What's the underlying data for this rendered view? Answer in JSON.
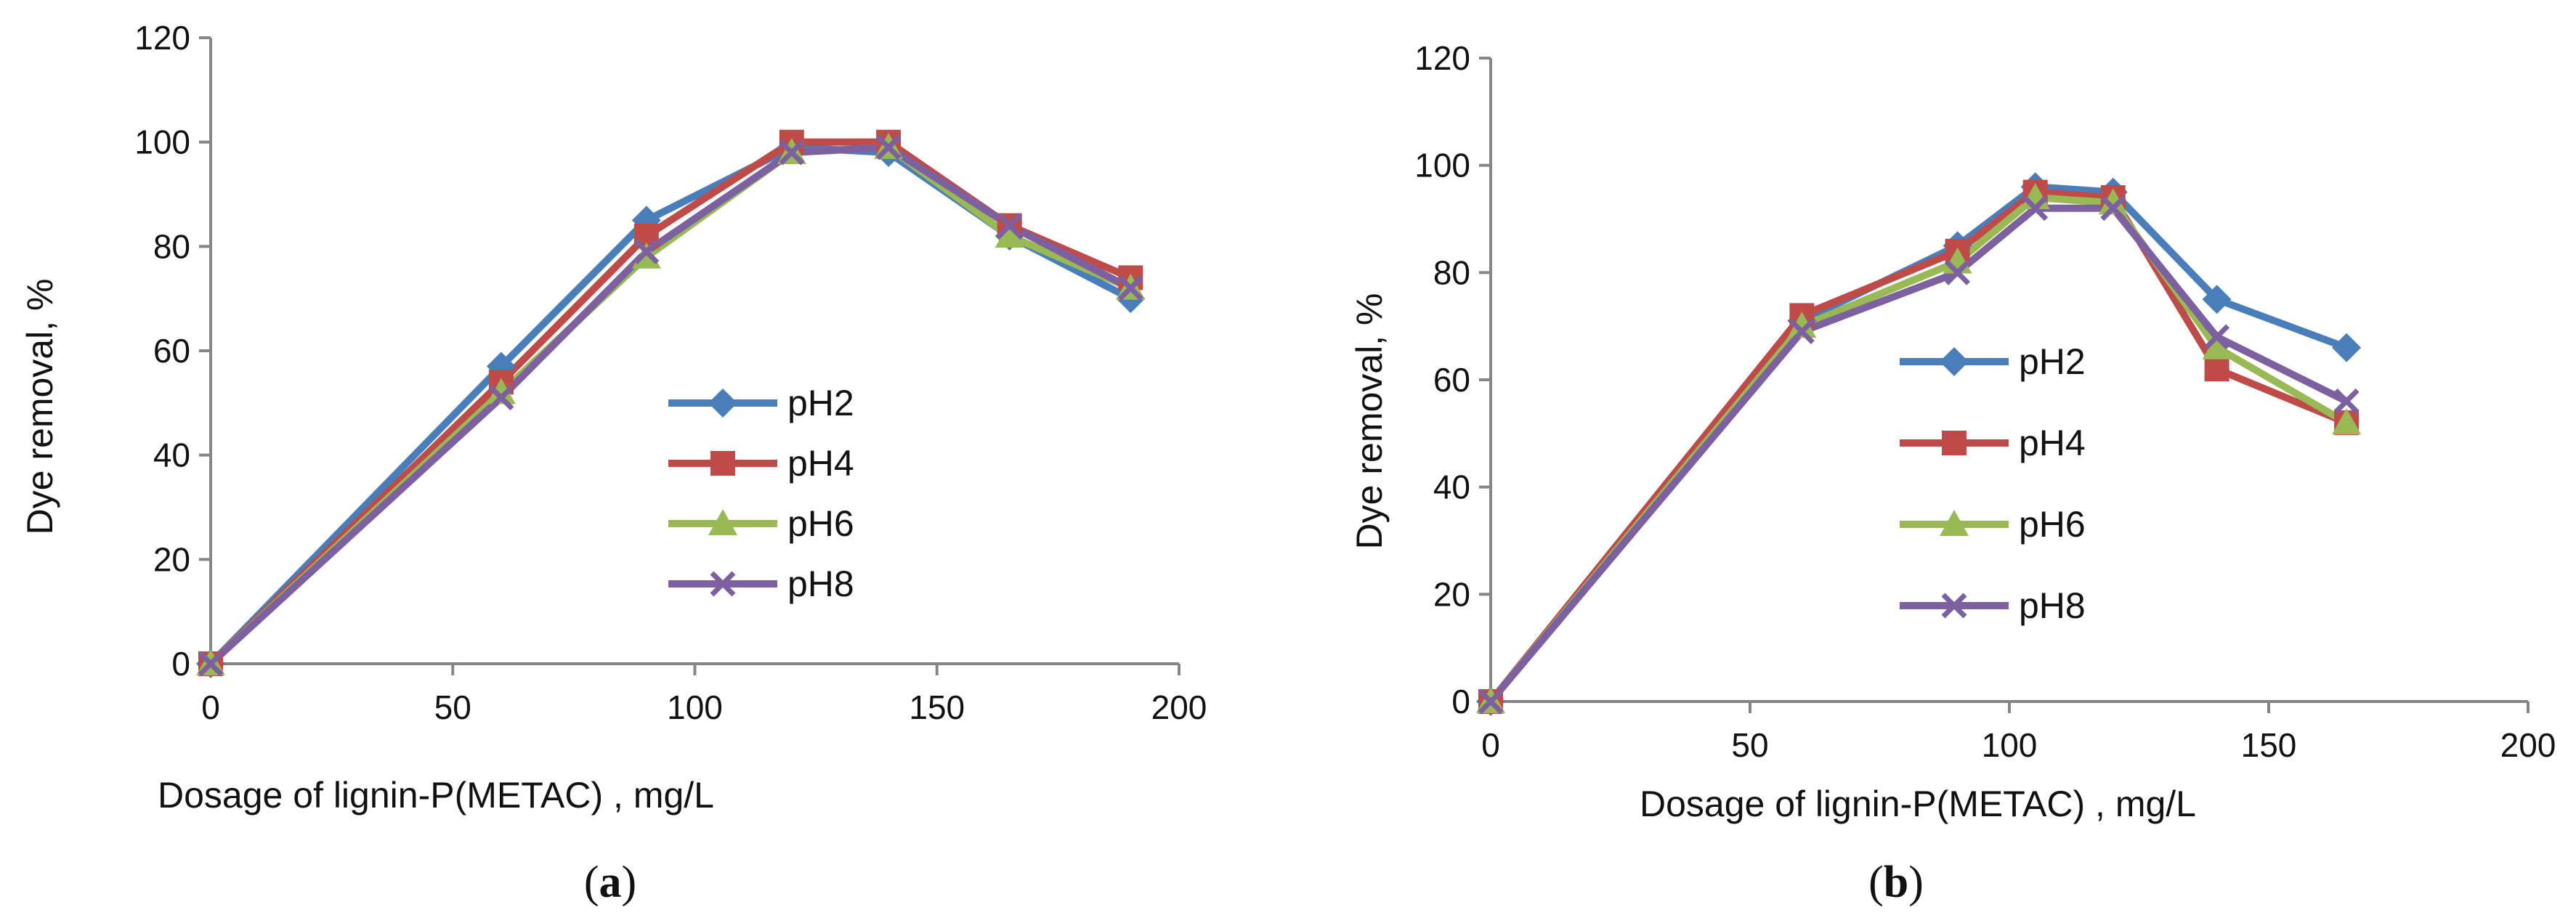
{
  "chart_data": [
    {
      "type": "line",
      "caption_letter": "a",
      "xlabel": "Dosage of lignin-P(METAC) , mg/L",
      "ylabel": "Dye removal, %",
      "xlim": [
        0,
        200
      ],
      "ylim": [
        0,
        120
      ],
      "x_ticks": [
        0,
        50,
        100,
        150,
        200
      ],
      "y_ticks": [
        0,
        20,
        40,
        60,
        80,
        100,
        120
      ],
      "grid": false,
      "legend_position": "center",
      "series": [
        {
          "name": "pH2",
          "color": "#4a7ebb",
          "marker": "diamond",
          "x": [
            0,
            60,
            90,
            120,
            140,
            165,
            190
          ],
          "values": [
            0,
            57,
            85,
            99,
            98,
            82,
            70
          ]
        },
        {
          "name": "pH4",
          "color": "#be4b48",
          "marker": "square",
          "x": [
            0,
            60,
            90,
            120,
            140,
            165,
            190
          ],
          "values": [
            0,
            54,
            82,
            100,
            100,
            84,
            74
          ]
        },
        {
          "name": "pH6",
          "color": "#98b954",
          "marker": "triangle",
          "x": [
            0,
            60,
            90,
            120,
            140,
            165,
            190
          ],
          "values": [
            0,
            52,
            78,
            98,
            99,
            82,
            72
          ]
        },
        {
          "name": "pH8",
          "color": "#7d60a0",
          "marker": "x",
          "x": [
            0,
            60,
            90,
            120,
            140,
            165,
            190
          ],
          "values": [
            0,
            51,
            79,
            98,
            99,
            84,
            72
          ]
        }
      ]
    },
    {
      "type": "line",
      "caption_letter": "b",
      "xlabel": "Dosage of lignin-P(METAC) , mg/L",
      "ylabel": "Dye removal, %",
      "xlim": [
        0,
        200
      ],
      "ylim": [
        0,
        120
      ],
      "x_ticks": [
        0,
        50,
        100,
        150,
        200
      ],
      "y_ticks": [
        0,
        20,
        40,
        60,
        80,
        100,
        120
      ],
      "grid": false,
      "legend_position": "center-right",
      "series": [
        {
          "name": "pH2",
          "color": "#4a7ebb",
          "marker": "diamond",
          "x": [
            0,
            60,
            90,
            105,
            120,
            140,
            165
          ],
          "values": [
            0,
            71,
            85,
            96,
            95,
            75,
            66
          ]
        },
        {
          "name": "pH4",
          "color": "#be4b48",
          "marker": "square",
          "x": [
            0,
            60,
            90,
            105,
            120,
            140,
            165
          ],
          "values": [
            0,
            72,
            84,
            95,
            94,
            62,
            52
          ]
        },
        {
          "name": "pH6",
          "color": "#98b954",
          "marker": "triangle",
          "x": [
            0,
            60,
            90,
            105,
            120,
            140,
            165
          ],
          "values": [
            0,
            70,
            82,
            94,
            93,
            66,
            52
          ]
        },
        {
          "name": "pH8",
          "color": "#7d60a0",
          "marker": "x",
          "x": [
            0,
            60,
            90,
            105,
            120,
            140,
            165
          ],
          "values": [
            0,
            69,
            80,
            92,
            92,
            68,
            56
          ]
        }
      ]
    }
  ]
}
